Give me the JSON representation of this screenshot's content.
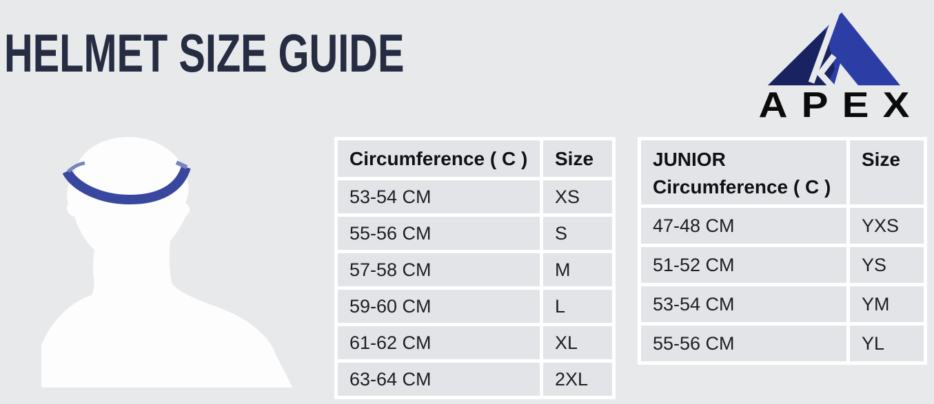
{
  "page": {
    "title": "HELMET SIZE GUIDE",
    "background_color": "#e8e9eb",
    "title_color": "#262c42"
  },
  "logo": {
    "brand": "APEX",
    "icon": "apex-mountain-icon",
    "triangle_dark_color": "#1a2361",
    "triangle_bright_color": "#2c3ea6",
    "wordmark_color": "#0b0b0b"
  },
  "figure": {
    "icon": "head-silhouette-with-measuring-band",
    "silhouette_color": "#fdfdfe",
    "band_color": "#39489e",
    "band_highlight_color": "#7a84bd"
  },
  "tables": {
    "adult": {
      "headers": [
        "Circumference ( C )",
        "Size"
      ],
      "rows": [
        [
          "53-54 CM",
          "XS"
        ],
        [
          "55-56 CM",
          "S"
        ],
        [
          "57-58 CM",
          "M"
        ],
        [
          "59-60 CM",
          "L"
        ],
        [
          "61-62 CM",
          "XL"
        ],
        [
          "63-64 CM",
          "2XL"
        ]
      ]
    },
    "junior": {
      "header_line1": "JUNIOR",
      "header_line2": "Circumference ( C )",
      "size_header": "Size",
      "rows": [
        [
          "47-48 CM",
          "YXS"
        ],
        [
          "51-52 CM",
          "YS"
        ],
        [
          "53-54 CM",
          "YM"
        ],
        [
          "55-56 CM",
          "YL"
        ]
      ]
    }
  }
}
